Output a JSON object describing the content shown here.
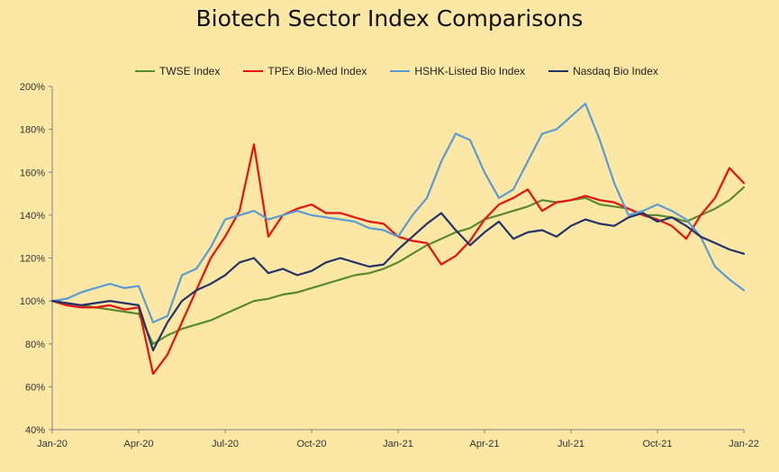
{
  "chart_data": {
    "type": "line",
    "title": "Biotech Sector Index Comparisons",
    "xlabel": "",
    "ylabel": "",
    "x_ticks": [
      "Jan-20",
      "Apr-20",
      "Jul-20",
      "Oct-20",
      "Jan-21",
      "Apr-21",
      "Jul-21",
      "Oct-21",
      "Jan-22"
    ],
    "y_ticks": [
      "40%",
      "60%",
      "80%",
      "100%",
      "120%",
      "140%",
      "160%",
      "180%",
      "200%"
    ],
    "ylim": [
      40,
      200
    ],
    "xlim": [
      "2020-01",
      "2022-01"
    ],
    "grid": false,
    "legend_position": "top",
    "x_months": [
      0,
      0.5,
      1,
      1.5,
      2,
      2.5,
      3,
      3.5,
      4,
      4.5,
      5,
      5.5,
      6,
      6.5,
      7,
      7.5,
      8,
      8.5,
      9,
      9.5,
      10,
      10.5,
      11,
      11.5,
      12,
      12.5,
      13,
      13.5,
      14,
      14.5,
      15,
      15.5,
      16,
      16.5,
      17,
      17.5,
      18,
      18.5,
      19,
      19.5,
      20,
      20.5,
      21,
      21.5,
      22,
      22.5,
      23,
      23.5,
      24
    ],
    "series": [
      {
        "name": "TWSE Index",
        "color": "#5a8a2e",
        "values": [
          100,
          99,
          98,
          97,
          96,
          95,
          94,
          80,
          84,
          87,
          89,
          91,
          94,
          97,
          100,
          101,
          103,
          104,
          106,
          108,
          110,
          112,
          113,
          115,
          118,
          122,
          126,
          129,
          132,
          134,
          138,
          140,
          142,
          144,
          147,
          146,
          147,
          148,
          145,
          144,
          143,
          140,
          140,
          139,
          137,
          140,
          143,
          147,
          153
        ]
      },
      {
        "name": "TPEx Bio-Med Index",
        "color": "#e8110f",
        "values": [
          100,
          98,
          97,
          97,
          98,
          96,
          97,
          66,
          75,
          90,
          105,
          120,
          130,
          142,
          173,
          130,
          140,
          143,
          145,
          141,
          141,
          139,
          137,
          136,
          130,
          128,
          127,
          117,
          121,
          128,
          138,
          145,
          148,
          152,
          142,
          146,
          147,
          149,
          147,
          146,
          143,
          140,
          138,
          135,
          129,
          140,
          148,
          162,
          155
        ]
      },
      {
        "name": "HSHK-Listed Bio Index",
        "color": "#5b9bd5",
        "values": [
          100,
          101,
          104,
          106,
          108,
          106,
          107,
          90,
          93,
          112,
          115,
          125,
          138,
          140,
          142,
          138,
          140,
          142,
          140,
          139,
          138,
          137,
          134,
          133,
          130,
          140,
          148,
          165,
          178,
          175,
          160,
          148,
          152,
          165,
          178,
          180,
          186,
          192,
          175,
          155,
          140,
          142,
          145,
          142,
          138,
          130,
          116,
          110,
          105
        ]
      },
      {
        "name": "Nasdaq Bio Index",
        "color": "#22336b",
        "values": [
          100,
          99,
          98,
          99,
          100,
          99,
          98,
          77,
          90,
          100,
          105,
          108,
          112,
          118,
          120,
          113,
          115,
          112,
          114,
          118,
          120,
          118,
          116,
          117,
          124,
          130,
          136,
          141,
          133,
          126,
          132,
          137,
          129,
          132,
          133,
          130,
          135,
          138,
          136,
          135,
          139,
          141,
          137,
          139,
          135,
          130,
          127,
          124,
          122
        ]
      }
    ]
  }
}
